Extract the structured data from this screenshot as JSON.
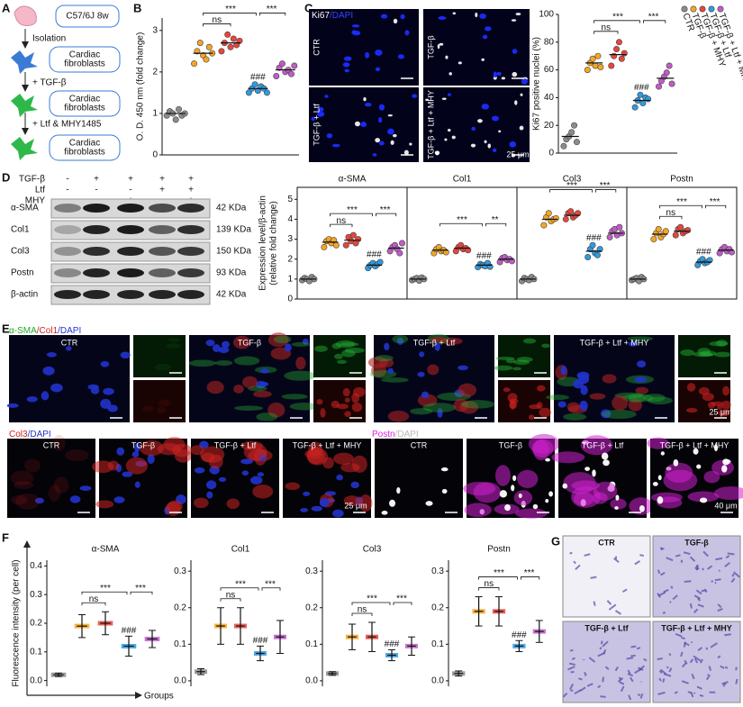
{
  "panel_letters": [
    "A",
    "B",
    "C",
    "D",
    "E",
    "F",
    "G"
  ],
  "flow": {
    "mouse": "C57/6J 8w",
    "steps": [
      "Isolation",
      "+ TGF-β",
      "+ Ltf & MHY1485"
    ],
    "boxes": [
      [
        "Cardiac",
        "fibroblasts"
      ],
      [
        "Cardiac",
        "fibroblasts"
      ],
      [
        "Cardiac",
        "fibroblasts"
      ]
    ]
  },
  "ki67": {
    "stain": [
      {
        "text": "Ki67",
        "color": "#ffffff"
      },
      {
        "text": "/DAPI",
        "color": "#3344ff"
      }
    ],
    "labels": [
      "CTR",
      "TGF-β",
      "TGF-β + Ltf",
      "TGF-β + Ltf + MHY"
    ],
    "scale": "25 μm"
  },
  "blot": {
    "conditions": [
      {
        "name": "TGF-β",
        "signs": [
          "-",
          "+",
          "+",
          "+",
          "+"
        ]
      },
      {
        "name": "Ltf",
        "signs": [
          "-",
          "-",
          "-",
          "+",
          "+"
        ]
      },
      {
        "name": "MHY",
        "signs": [
          "-",
          "-",
          "+",
          "-",
          "+"
        ]
      }
    ],
    "bands": [
      {
        "name": "α-SMA",
        "size": "42 KDa"
      },
      {
        "name": "Col1",
        "size": "139 KDa"
      },
      {
        "name": "Col3",
        "size": "150 KDa"
      },
      {
        "name": "Postn",
        "size": "93 KDa"
      },
      {
        "name": "β-actin",
        "size": "42 KDa"
      }
    ]
  },
  "if_row1": {
    "stain": [
      {
        "text": "α-SMA",
        "color": "#22aa22"
      },
      {
        "text": "/Col1",
        "color": "#cc2222"
      },
      {
        "text": "/DAPI",
        "color": "#2233cc"
      }
    ],
    "labels": [
      "CTR",
      "TGF-β",
      "TGF-β + Ltf",
      "TGF-β + Ltf + MHY"
    ],
    "scale": "25 μm"
  },
  "if_col3": {
    "stain": [
      {
        "text": "Col3",
        "color": "#cc2222"
      },
      {
        "text": "/DAPI",
        "color": "#2233cc"
      }
    ],
    "labels": [
      "CTR",
      "TGF-β",
      "TGF-β + Ltf",
      "TGF-β + Ltf + MHY"
    ],
    "scale": "25 μm"
  },
  "if_postn": {
    "stain": [
      {
        "text": "Postn",
        "color": "#dd22dd"
      },
      {
        "text": "/DAPI",
        "color": "#bbbbbb"
      }
    ],
    "labels": [
      "CTR",
      "TGF-β",
      "TGF-β + Ltf",
      "TGF-β + Ltf + MHY"
    ],
    "scale": "40 μm"
  },
  "transwell": {
    "labels": [
      "CTR",
      "TGF-β",
      "TGF-β + Ltf",
      "TGF-β + Ltf + MHY"
    ]
  },
  "chart_data": [
    {
      "type": "dot",
      "ylabel": "O. D. 450 nm (fold change)",
      "ylim": [
        0,
        3.3
      ],
      "yticks": [
        0,
        1,
        2,
        3
      ],
      "colors": [
        "#8c8c8c",
        "#f5a623",
        "#e8453c",
        "#2f9be0",
        "#c05cc8"
      ],
      "annotations": {
        "vs_tgf": "ns",
        "tgf_vs_ltf": "***",
        "ltf_vs_ltfmhy": "***",
        "ltf_vs_ctr": "###"
      },
      "series": [
        {
          "mean": 1.0,
          "values": [
            0.95,
            1.05,
            1.0,
            0.85,
            1.1,
            0.95,
            1.0
          ]
        },
        {
          "mean": 2.45,
          "values": [
            2.2,
            2.5,
            2.7,
            2.4,
            2.3,
            2.6,
            2.45
          ]
        },
        {
          "mean": 2.7,
          "values": [
            2.5,
            2.7,
            2.9,
            2.6,
            2.8,
            2.65,
            2.75
          ]
        },
        {
          "mean": 1.6,
          "values": [
            1.5,
            1.6,
            1.7,
            1.55,
            1.65,
            1.6,
            1.5
          ]
        },
        {
          "mean": 2.05,
          "values": [
            1.9,
            2.1,
            2.2,
            2.0,
            2.05,
            1.95,
            2.15
          ]
        }
      ]
    },
    {
      "type": "dot",
      "ylabel": "Ki67 positive nuclei (%)",
      "ylim": [
        0,
        100
      ],
      "yticks": [
        0,
        20,
        40,
        60,
        80,
        100
      ],
      "colors": [
        "#8c8c8c",
        "#f5a623",
        "#e8453c",
        "#2f9be0",
        "#c05cc8"
      ],
      "legend": [
        "CTR",
        "TGF-β",
        "TGF-β + MHY",
        "TGF-β + Ltf",
        "TGF-β + Ltf + MHY"
      ],
      "annotations": {
        "vs_tgf": "ns",
        "tgf_vs_ltf": "***",
        "ltf_vs_ltfmhy": "***",
        "ltf_vs_ctr": "###"
      },
      "series": [
        {
          "mean": 12,
          "values": [
            5,
            10,
            12,
            15,
            20,
            8
          ]
        },
        {
          "mean": 65,
          "values": [
            60,
            65,
            68,
            63,
            70,
            62
          ]
        },
        {
          "mean": 71,
          "values": [
            63,
            70,
            75,
            80,
            68,
            72
          ]
        },
        {
          "mean": 38,
          "values": [
            33,
            38,
            42,
            36,
            40,
            39
          ]
        },
        {
          "mean": 54,
          "values": [
            48,
            52,
            55,
            58,
            63,
            50
          ]
        }
      ]
    },
    {
      "type": "dot",
      "ylabel": [
        "Expression level/β-actin",
        "(relative fold change)"
      ],
      "ylim": [
        0,
        5.6
      ],
      "yticks": [
        0,
        1,
        2,
        3,
        4,
        5
      ],
      "colors": [
        "#8c8c8c",
        "#f5a623",
        "#e8453c",
        "#2f9be0",
        "#c05cc8"
      ],
      "facets": [
        {
          "title": "α-SMA",
          "annotations": {
            "vs_tgf": "ns",
            "tgf_vs_ltf": "***",
            "ltf_vs_ltfmhy": "***",
            "ltf_vs_ctr": "###"
          },
          "series": [
            {
              "mean": 1.0,
              "values": [
                0.95,
                1.05,
                1.0,
                0.9,
                1.1,
                1.0
              ]
            },
            {
              "mean": 2.85,
              "values": [
                2.6,
                2.9,
                3.0,
                2.8,
                2.95,
                2.7
              ]
            },
            {
              "mean": 2.95,
              "values": [
                2.7,
                3.1,
                2.9,
                3.2,
                2.8,
                3.0
              ]
            },
            {
              "mean": 1.7,
              "values": [
                1.55,
                1.7,
                1.8,
                1.65,
                1.75,
                1.85
              ]
            },
            {
              "mean": 2.55,
              "values": [
                2.4,
                2.6,
                2.7,
                2.5,
                2.3,
                2.8
              ]
            }
          ]
        },
        {
          "title": "Col1",
          "annotations": {
            "tgf_vs_ltf": "***",
            "ltf_vs_ltfmhy": "**",
            "ltf_vs_ctr": "###"
          },
          "series": [
            {
              "mean": 1.0,
              "values": [
                0.95,
                1.0,
                1.05,
                0.92,
                1.08,
                1.0
              ]
            },
            {
              "mean": 2.45,
              "values": [
                2.3,
                2.5,
                2.6,
                2.4,
                2.45,
                2.35
              ]
            },
            {
              "mean": 2.55,
              "values": [
                2.4,
                2.6,
                2.7,
                2.5,
                2.55,
                2.45
              ]
            },
            {
              "mean": 1.7,
              "values": [
                1.6,
                1.75,
                1.7,
                1.65,
                1.8,
                1.62
              ]
            },
            {
              "mean": 2.0,
              "values": [
                1.85,
                2.05,
                2.1,
                1.95,
                2.0,
                1.9
              ]
            }
          ]
        },
        {
          "title": "Col3",
          "annotations": {
            "tgf_vs_ltf": "***",
            "ltf_vs_ltfmhy": "***",
            "ltf_vs_ctr": "###"
          },
          "series": [
            {
              "mean": 1.0,
              "values": [
                0.9,
                1.05,
                1.0,
                0.95,
                1.1,
                1.0
              ]
            },
            {
              "mean": 4.0,
              "values": [
                3.7,
                4.1,
                4.3,
                3.9,
                4.0,
                4.05
              ]
            },
            {
              "mean": 4.2,
              "values": [
                4.0,
                4.3,
                4.4,
                4.1,
                4.2,
                4.3
              ]
            },
            {
              "mean": 2.4,
              "values": [
                2.1,
                2.5,
                2.7,
                2.3,
                2.2,
                2.5
              ]
            },
            {
              "mean": 3.3,
              "values": [
                3.1,
                3.4,
                3.5,
                3.2,
                3.6,
                3.3
              ]
            }
          ]
        },
        {
          "title": "Postn",
          "annotations": {
            "vs_tgf": "ns",
            "tgf_vs_ltf": "***",
            "ltf_vs_ltfmhy": "***",
            "ltf_vs_ctr": "###"
          },
          "series": [
            {
              "mean": 1.0,
              "values": [
                0.95,
                1.0,
                1.05,
                0.9,
                1.1,
                1.0
              ]
            },
            {
              "mean": 3.25,
              "values": [
                3.0,
                3.3,
                3.5,
                3.1,
                3.25,
                3.4
              ]
            },
            {
              "mean": 3.4,
              "values": [
                3.2,
                3.5,
                3.6,
                3.3,
                3.4,
                3.45
              ]
            },
            {
              "mean": 1.85,
              "values": [
                1.7,
                1.9,
                2.0,
                1.8,
                1.85,
                1.95
              ]
            },
            {
              "mean": 2.45,
              "values": [
                2.3,
                2.5,
                2.6,
                2.4,
                2.5,
                2.35
              ]
            }
          ]
        }
      ]
    },
    {
      "type": "meansd",
      "title": "α-SMA",
      "ylabel": "Fluorescence intensity (per cell)",
      "xlabel": "Groups",
      "ylim": [
        -0.02,
        0.42
      ],
      "yticks": [
        {
          "value": 0,
          "label": "0.0"
        },
        0.1,
        0.2,
        0.3,
        0.4
      ],
      "colors": [
        "#8c8c8c",
        "#f5a623",
        "#e8453c",
        "#2f9be0",
        "#c05cc8"
      ],
      "annotations": {
        "vs_tgf": "ns",
        "tgf_vs_ltf": "***",
        "ltf_vs_ltfmhy": "***",
        "ltf_vs_ctr": "###"
      },
      "series": [
        {
          "mean": 0.02,
          "sd": 0.006
        },
        {
          "mean": 0.19,
          "sd": 0.04
        },
        {
          "mean": 0.2,
          "sd": 0.04
        },
        {
          "mean": 0.12,
          "sd": 0.035
        },
        {
          "mean": 0.145,
          "sd": 0.03
        }
      ]
    },
    {
      "type": "meansd",
      "title": "Col1",
      "ylim": [
        -0.015,
        0.33
      ],
      "yticks": [
        {
          "value": 0,
          "label": "0.0"
        },
        0.1,
        0.2,
        0.3
      ],
      "colors": [
        "#8c8c8c",
        "#f5a623",
        "#e8453c",
        "#2f9be0",
        "#c05cc8"
      ],
      "annotations": {
        "vs_tgf": "ns",
        "tgf_vs_ltf": "***",
        "ltf_vs_ltfmhy": "***",
        "ltf_vs_ctr": "###"
      },
      "series": [
        {
          "mean": 0.025,
          "sd": 0.008
        },
        {
          "mean": 0.15,
          "sd": 0.05
        },
        {
          "mean": 0.15,
          "sd": 0.05
        },
        {
          "mean": 0.075,
          "sd": 0.02
        },
        {
          "mean": 0.12,
          "sd": 0.045
        }
      ]
    },
    {
      "type": "meansd",
      "title": "Col3",
      "ylim": [
        -0.015,
        0.33
      ],
      "yticks": [
        {
          "value": 0,
          "label": "0.0"
        },
        0.1,
        0.2,
        0.3
      ],
      "colors": [
        "#8c8c8c",
        "#f5a623",
        "#e8453c",
        "#2f9be0",
        "#c05cc8"
      ],
      "annotations": {
        "vs_tgf": "ns",
        "tgf_vs_ltf": "***",
        "ltf_vs_ltfmhy": "***",
        "ltf_vs_ctr": "###"
      },
      "series": [
        {
          "mean": 0.02,
          "sd": 0.005
        },
        {
          "mean": 0.12,
          "sd": 0.035
        },
        {
          "mean": 0.12,
          "sd": 0.04
        },
        {
          "mean": 0.07,
          "sd": 0.015
        },
        {
          "mean": 0.095,
          "sd": 0.025
        }
      ]
    },
    {
      "type": "meansd",
      "title": "Postn",
      "ylim": [
        -0.015,
        0.33
      ],
      "yticks": [
        {
          "value": 0,
          "label": "0.0"
        },
        0.1,
        0.2,
        0.3
      ],
      "colors": [
        "#8c8c8c",
        "#f5a623",
        "#e8453c",
        "#2f9be0",
        "#c05cc8"
      ],
      "annotations": {
        "vs_tgf": "ns",
        "tgf_vs_ltf": "***",
        "ltf_vs_ltfmhy": "***",
        "ltf_vs_ctr": "###"
      },
      "series": [
        {
          "mean": 0.02,
          "sd": 0.007
        },
        {
          "mean": 0.19,
          "sd": 0.04
        },
        {
          "mean": 0.19,
          "sd": 0.04
        },
        {
          "mean": 0.095,
          "sd": 0.015
        },
        {
          "mean": 0.135,
          "sd": 0.03
        }
      ]
    }
  ]
}
